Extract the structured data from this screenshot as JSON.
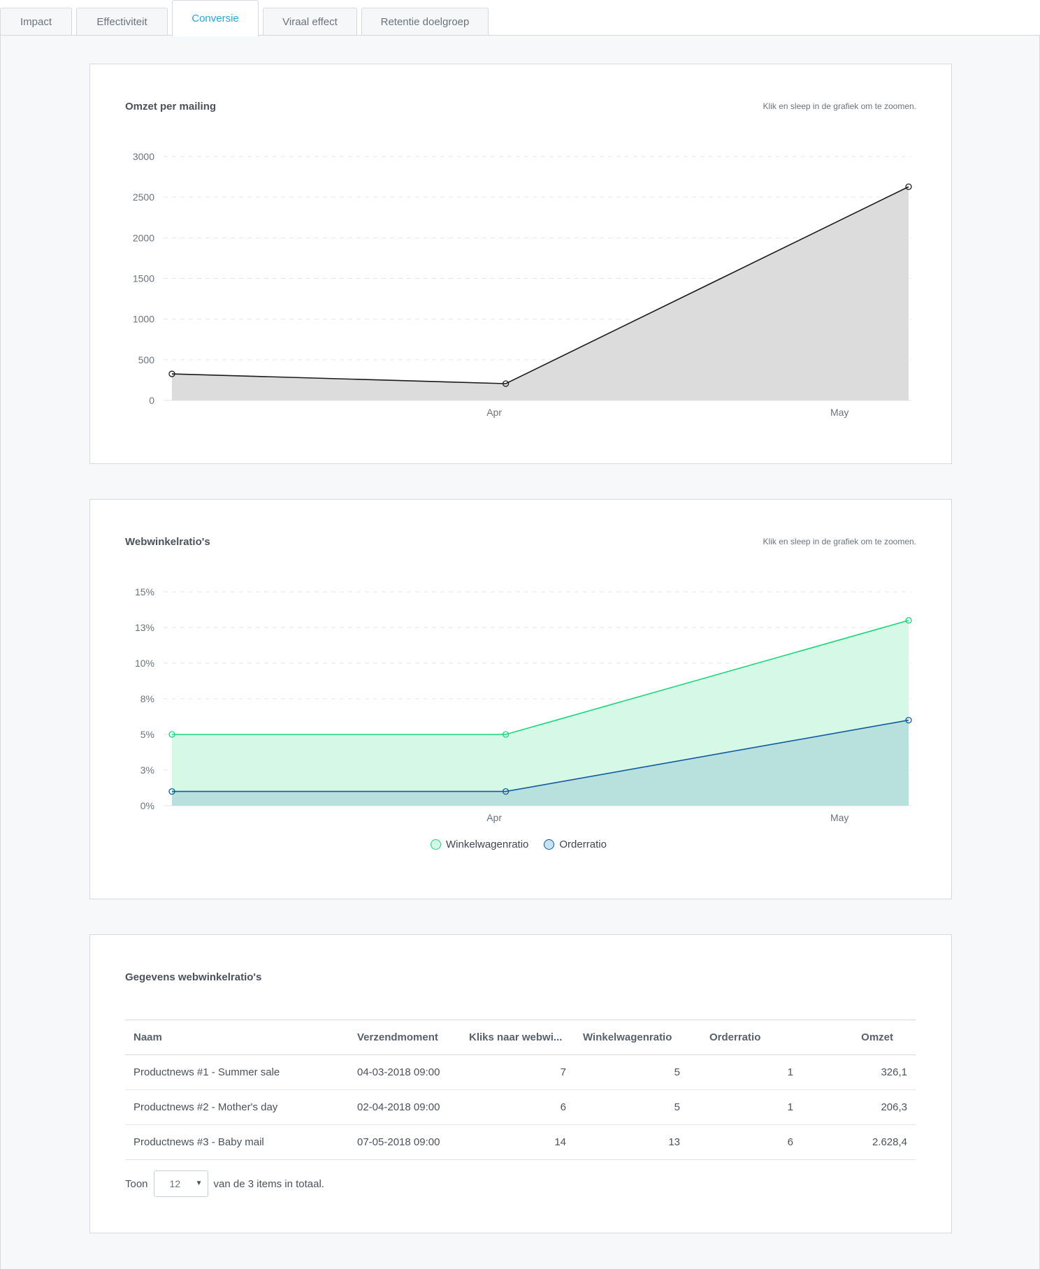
{
  "tabs": [
    "Impact",
    "Effectiviteit",
    "Conversie",
    "Viraal effect",
    "Retentie doelgroep"
  ],
  "active_tab": "Conversie",
  "colors": {
    "accent": "#2ba6d5",
    "revenue_line": "#1a1a1a",
    "revenue_fill": "#dcdcdc",
    "cart_line": "#1bd67a",
    "cart_fill": "#d6f8e7",
    "order_line": "#0f5aa0",
    "order_fill": "#b8e0dc"
  },
  "chart1": {
    "title": "Omzet per mailing",
    "hint": "Klik en sleep in de grafiek om te zoomen."
  },
  "chart2": {
    "title": "Webwinkelratio's",
    "hint": "Klik en sleep in de grafiek om te zoomen.",
    "legend": [
      "Winkelwagenratio",
      "Orderratio"
    ]
  },
  "chart_data": [
    {
      "type": "area",
      "title": "Omzet per mailing",
      "x": [
        "2018-03-04",
        "2018-04-02",
        "2018-05-07"
      ],
      "x_ticks": [
        "Apr",
        "May"
      ],
      "y_ticks": [
        "0",
        "500",
        "1000",
        "1500",
        "2000",
        "2500",
        "3000"
      ],
      "ylim": [
        0,
        3000
      ],
      "grid": true,
      "series": [
        {
          "values": [
            326.1,
            206.3,
            2628.4
          ]
        }
      ]
    },
    {
      "type": "area",
      "title": "Webwinkelratio's",
      "x": [
        "2018-03-04",
        "2018-04-02",
        "2018-05-07"
      ],
      "x_ticks": [
        "Apr",
        "May"
      ],
      "y_ticks": [
        "0%",
        "3%",
        "5%",
        "8%",
        "10%",
        "13%",
        "15%"
      ],
      "ylim": [
        0,
        15
      ],
      "grid": true,
      "legend_position": "bottom",
      "series": [
        {
          "name": "Winkelwagenratio",
          "values": [
            5,
            5,
            13
          ]
        },
        {
          "name": "Orderratio",
          "values": [
            1,
            1,
            6
          ]
        }
      ]
    }
  ],
  "table": {
    "title": "Gegevens webwinkelratio's",
    "headers": [
      "Naam",
      "Verzendmoment",
      "Kliks naar webwi...",
      "Winkelwagenratio",
      "Orderratio",
      "Omzet"
    ],
    "rows": [
      [
        "Productnews #1 - Summer sale",
        "04-03-2018 09:00",
        "7",
        "5",
        "1",
        "326,1"
      ],
      [
        "Productnews #2 - Mother's day",
        "02-04-2018 09:00",
        "6",
        "5",
        "1",
        "206,3"
      ],
      [
        "Productnews #3 - Baby mail",
        "07-05-2018 09:00",
        "14",
        "13",
        "6",
        "2.628,4"
      ]
    ],
    "pager": {
      "label": "Toon",
      "page_size": "12",
      "suffix": "van de 3 items in totaal."
    }
  }
}
